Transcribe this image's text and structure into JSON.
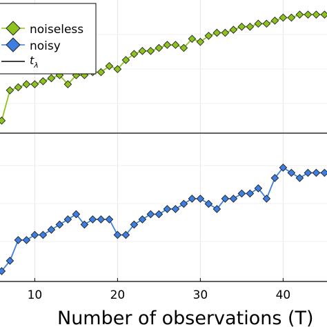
{
  "chart_data": {
    "type": "line",
    "xlabel": "Number of observations (T)",
    "x_ticks": [
      10,
      20,
      30,
      40
    ],
    "xlim": [
      5.8,
      45.3
    ],
    "grid": true,
    "legend_position": "top-left",
    "legend": [
      {
        "label": "noiseless",
        "color": "#8dc21f",
        "marker": "diamond"
      },
      {
        "label": "noisy",
        "color": "#3d7fe0",
        "marker": "diamond"
      },
      {
        "label": "t",
        "subscript": "λ",
        "color": "#000000",
        "marker": "line"
      }
    ],
    "series": [
      {
        "name": "noiseless",
        "color": "#8dc21f",
        "x": [
          6,
          7,
          8,
          9,
          10,
          11,
          12,
          13,
          14,
          15,
          16,
          17,
          18,
          19,
          20,
          21,
          22,
          23,
          24,
          25,
          26,
          27,
          28,
          29,
          30,
          31,
          32,
          33,
          34,
          35,
          36,
          37,
          38,
          39,
          40,
          41,
          42,
          43,
          44,
          45
        ],
        "y": [
          0.58,
          0.68,
          0.69,
          0.7,
          0.7,
          0.71,
          0.72,
          0.73,
          0.7,
          0.73,
          0.73,
          0.74,
          0.74,
          0.76,
          0.75,
          0.78,
          0.8,
          0.81,
          0.81,
          0.82,
          0.83,
          0.83,
          0.82,
          0.85,
          0.84,
          0.86,
          0.87,
          0.87,
          0.88,
          0.89,
          0.89,
          0.9,
          0.9,
          0.91,
          0.92,
          0.92,
          0.93,
          0.93,
          0.93,
          0.93
        ]
      },
      {
        "name": "noisy",
        "color": "#3d7fe0",
        "x": [
          6,
          7,
          8,
          9,
          10,
          11,
          12,
          13,
          14,
          15,
          16,
          17,
          18,
          19,
          20,
          21,
          22,
          23,
          24,
          25,
          26,
          27,
          28,
          29,
          30,
          31,
          32,
          33,
          34,
          35,
          36,
          37,
          38,
          39,
          40,
          41,
          42,
          43,
          44,
          45
        ],
        "y": [
          0.3,
          0.32,
          0.36,
          0.36,
          0.37,
          0.37,
          0.38,
          0.39,
          0.4,
          0.41,
          0.39,
          0.4,
          0.4,
          0.4,
          0.37,
          0.37,
          0.39,
          0.4,
          0.41,
          0.41,
          0.42,
          0.42,
          0.43,
          0.44,
          0.44,
          0.43,
          0.42,
          0.44,
          0.44,
          0.45,
          0.45,
          0.46,
          0.44,
          0.48,
          0.5,
          0.49,
          0.48,
          0.49,
          0.49,
          0.49
        ]
      }
    ],
    "panels": [
      {
        "id": "top",
        "series": "noiseless",
        "ylim": [
          0.55,
          0.96
        ]
      },
      {
        "id": "bottom",
        "series": "noisy",
        "ylim": [
          0.28,
          0.56
        ]
      }
    ]
  }
}
